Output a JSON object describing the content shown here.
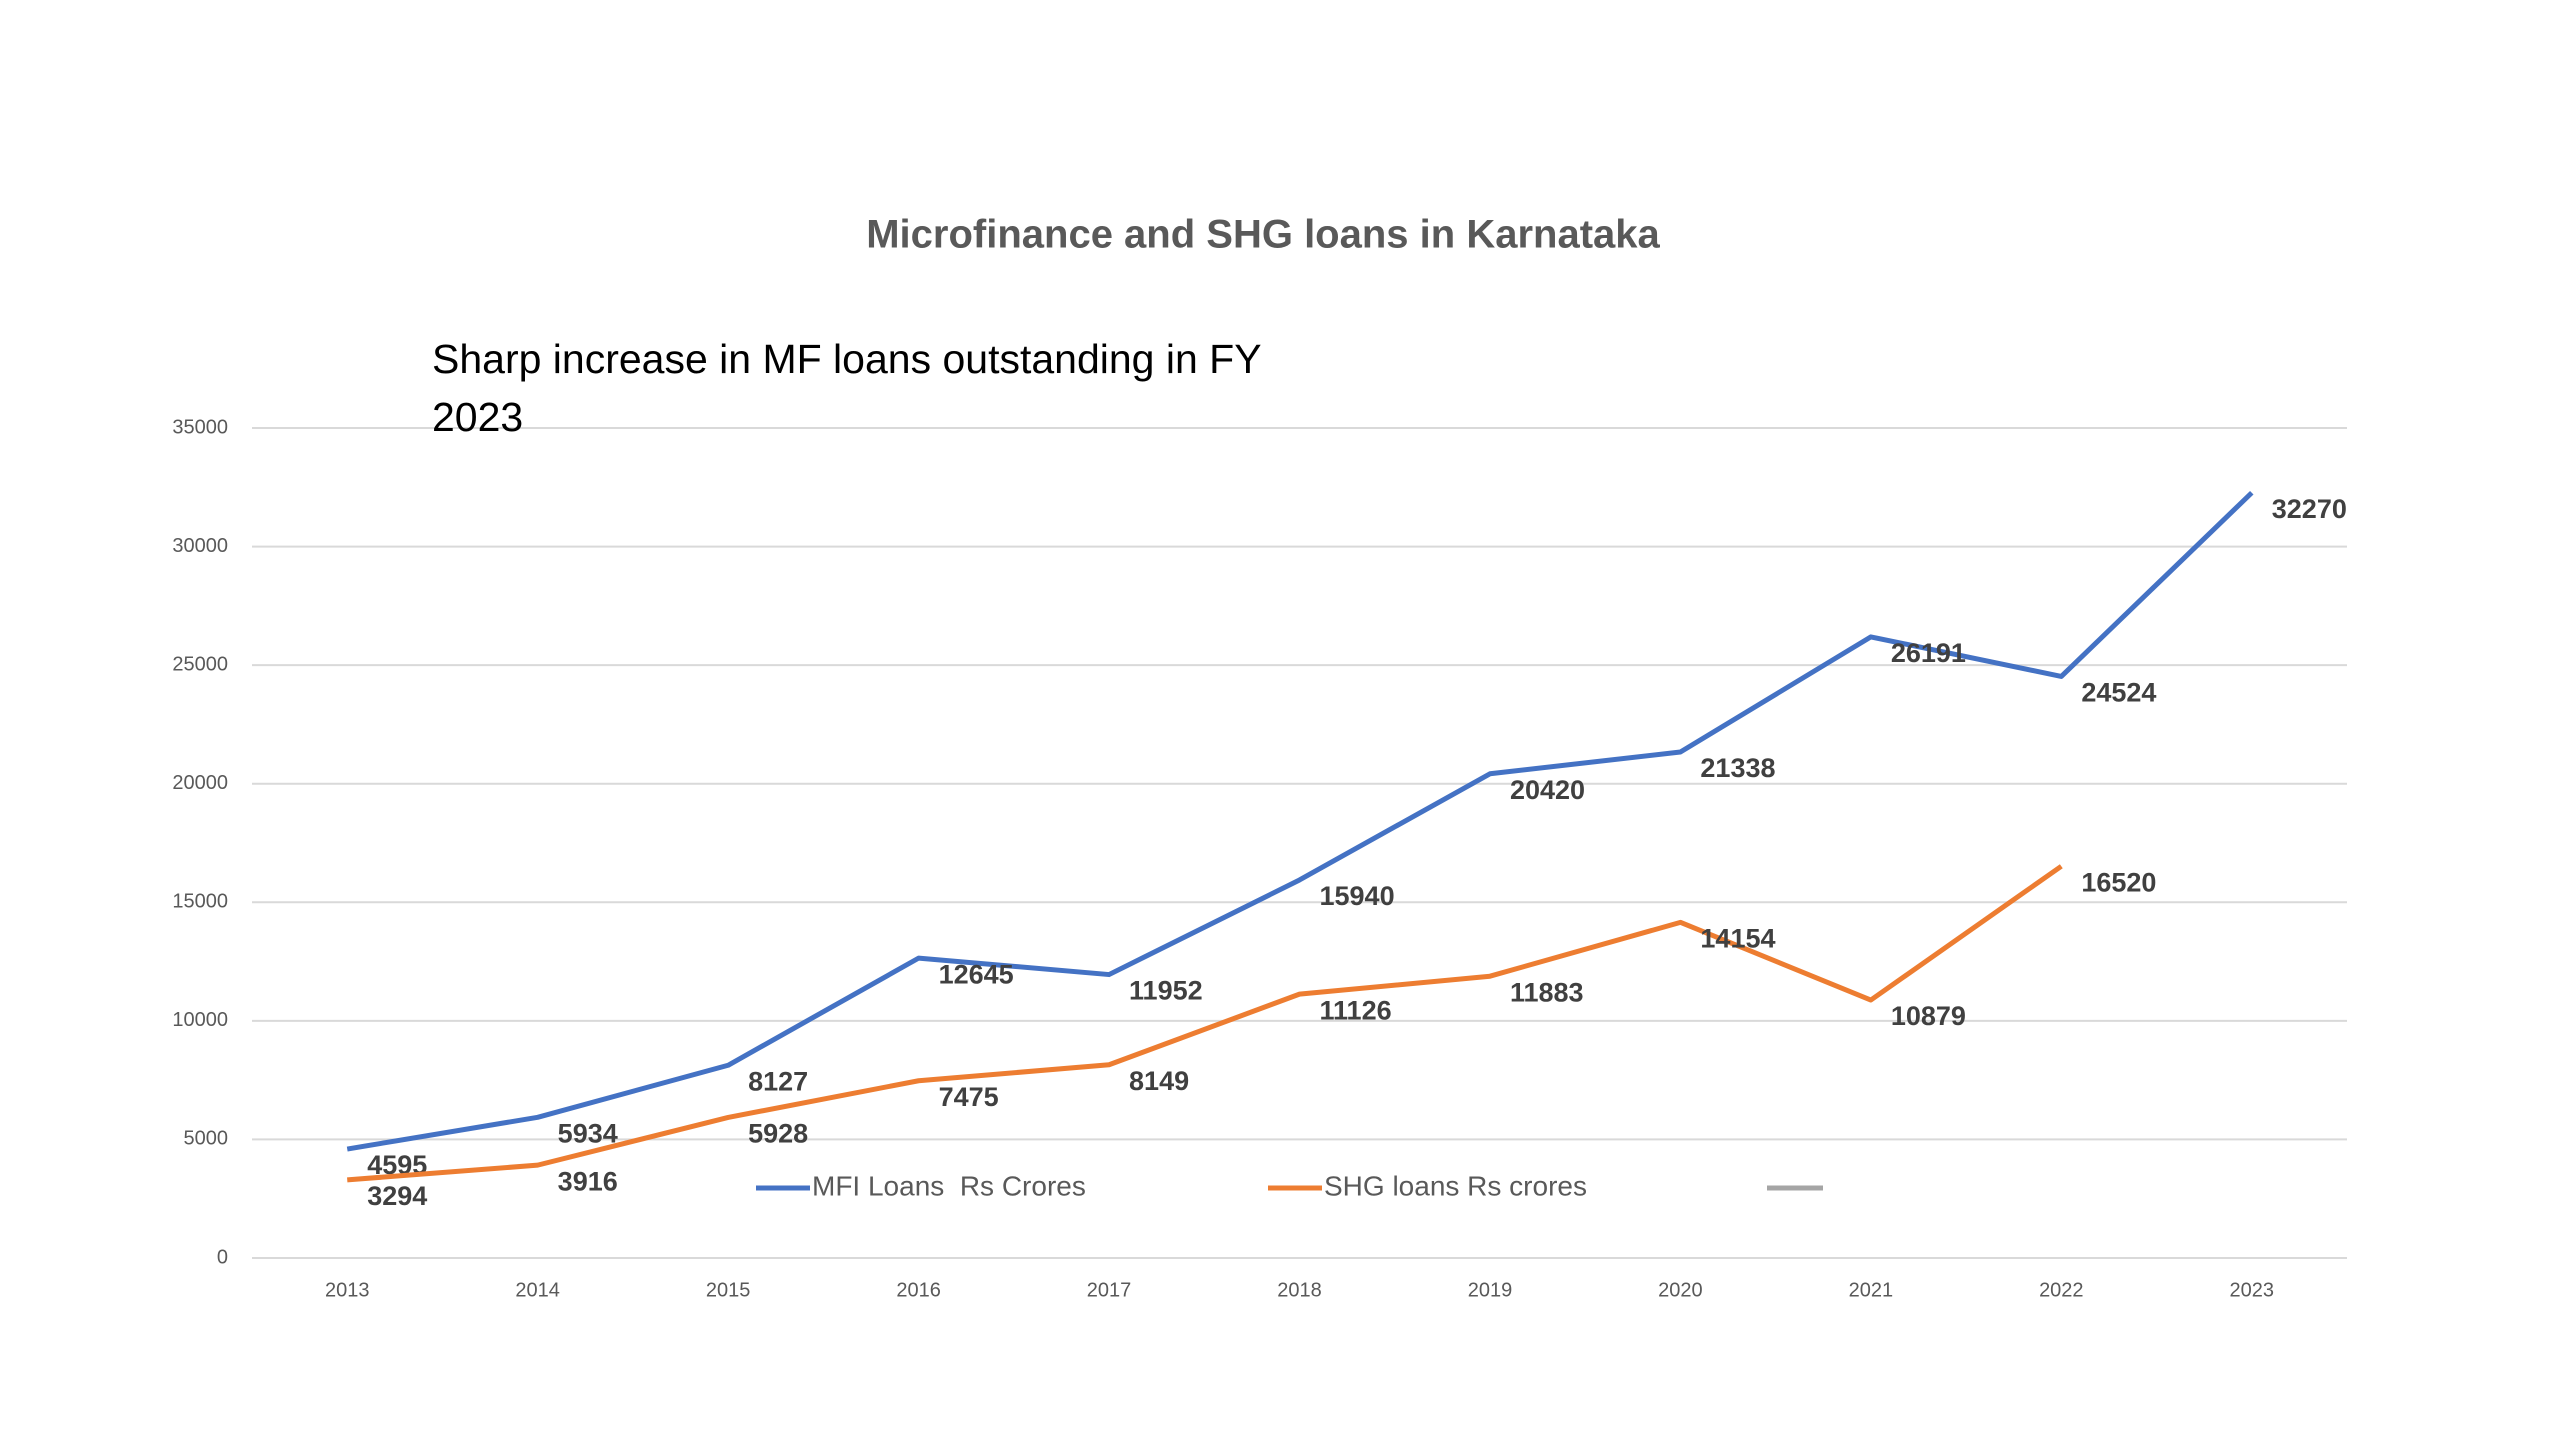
{
  "chart_data": {
    "type": "line",
    "title": "Microfinance and SHG loans in Karnataka",
    "annotation": "Sharp increase in MF loans outstanding in FY 2023",
    "categories": [
      "2013",
      "2014",
      "2015",
      "2016",
      "2017",
      "2018",
      "2019",
      "2020",
      "2021",
      "2022",
      "2023"
    ],
    "series": [
      {
        "name": "MFI Loans  Rs Crores",
        "color": "#4472c4",
        "values": [
          4595,
          5934,
          8127,
          12645,
          11952,
          15940,
          20420,
          21338,
          26191,
          24524,
          32270
        ]
      },
      {
        "name": "SHG loans Rs crores",
        "color": "#ed7d31",
        "values": [
          3294,
          3916,
          5928,
          7475,
          8149,
          11126,
          11883,
          14154,
          10879,
          16520,
          null
        ]
      }
    ],
    "ylim": [
      0,
      35000
    ],
    "yticks": [
      0,
      5000,
      10000,
      15000,
      20000,
      25000,
      30000,
      35000
    ],
    "grid": true
  }
}
